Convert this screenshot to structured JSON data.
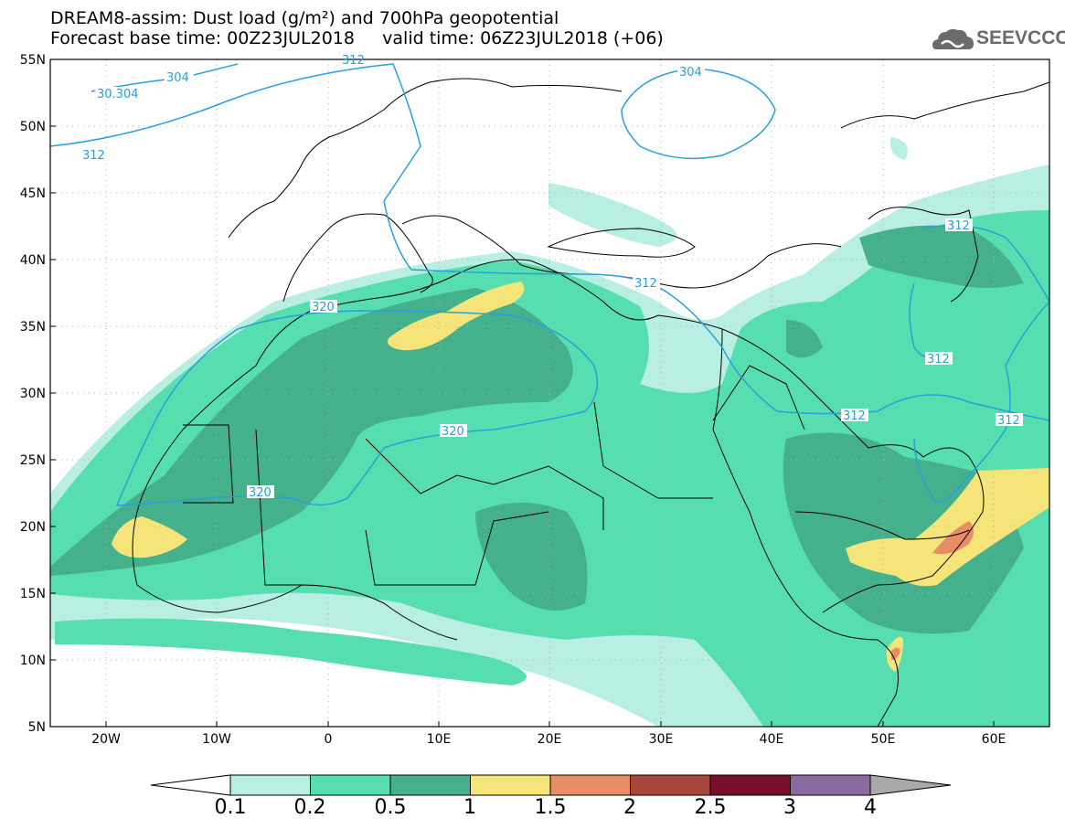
{
  "title_line1": "DREAM8-assim: Dust load (g/m²) and 700hPa geopotential",
  "title_line2": "Forecast base time: 00Z23JUL2018     valid time: 06Z23JUL2018 (+06)",
  "logo_text": "SEEVCCC",
  "lat_labels": [
    "55N",
    "50N",
    "45N",
    "40N",
    "35N",
    "30N",
    "25N",
    "20N",
    "15N",
    "10N",
    "5N"
  ],
  "lon_labels": [
    "20W",
    "10W",
    "0",
    "10E",
    "20E",
    "30E",
    "40E",
    "50E",
    "60E"
  ],
  "contour_labels": [
    "30.304",
    "304",
    "312",
    "304",
    "312",
    "320",
    "320",
    "320",
    "312",
    "312",
    "312",
    "312",
    "312"
  ],
  "colorbar": {
    "labels": [
      "0.1",
      "0.2",
      "0.5",
      "1",
      "1.5",
      "2",
      "2.5",
      "3",
      "4"
    ],
    "colors": [
      "#b9eee2",
      "#57deb0",
      "#45b08c",
      "#f4e47a",
      "#e88d68",
      "#a8463c",
      "#7a0f2c",
      "#8a6aa0"
    ],
    "under_color": "#ffffff",
    "over_color": "#a9a9a9"
  },
  "colors": {
    "contour": "#2a9fd8",
    "coast": "#000000",
    "grid": "#b0b0b0"
  }
}
